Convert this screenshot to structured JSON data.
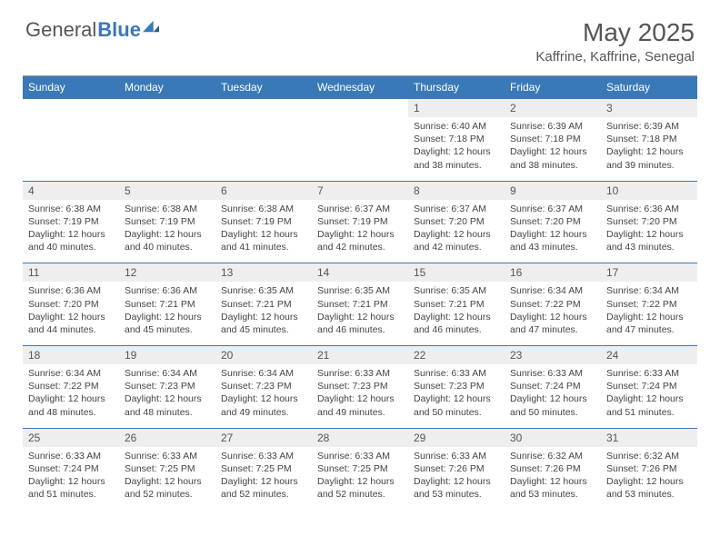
{
  "logo": {
    "part1": "General",
    "part2": "Blue"
  },
  "title": "May 2025",
  "subtitle": "Kaffrine, Kaffrine, Senegal",
  "colors": {
    "header_bg": "#3a79b7",
    "num_bg": "#eeeeee",
    "text": "#444444",
    "logo_gray": "#555555",
    "logo_blue": "#3a79b7"
  },
  "day_names": [
    "Sunday",
    "Monday",
    "Tuesday",
    "Wednesday",
    "Thursday",
    "Friday",
    "Saturday"
  ],
  "weeks": [
    [
      {
        "n": "",
        "t": ""
      },
      {
        "n": "",
        "t": ""
      },
      {
        "n": "",
        "t": ""
      },
      {
        "n": "",
        "t": ""
      },
      {
        "n": "1",
        "t": "Sunrise: 6:40 AM\nSunset: 7:18 PM\nDaylight: 12 hours and 38 minutes."
      },
      {
        "n": "2",
        "t": "Sunrise: 6:39 AM\nSunset: 7:18 PM\nDaylight: 12 hours and 38 minutes."
      },
      {
        "n": "3",
        "t": "Sunrise: 6:39 AM\nSunset: 7:18 PM\nDaylight: 12 hours and 39 minutes."
      }
    ],
    [
      {
        "n": "4",
        "t": "Sunrise: 6:38 AM\nSunset: 7:19 PM\nDaylight: 12 hours and 40 minutes."
      },
      {
        "n": "5",
        "t": "Sunrise: 6:38 AM\nSunset: 7:19 PM\nDaylight: 12 hours and 40 minutes."
      },
      {
        "n": "6",
        "t": "Sunrise: 6:38 AM\nSunset: 7:19 PM\nDaylight: 12 hours and 41 minutes."
      },
      {
        "n": "7",
        "t": "Sunrise: 6:37 AM\nSunset: 7:19 PM\nDaylight: 12 hours and 42 minutes."
      },
      {
        "n": "8",
        "t": "Sunrise: 6:37 AM\nSunset: 7:20 PM\nDaylight: 12 hours and 42 minutes."
      },
      {
        "n": "9",
        "t": "Sunrise: 6:37 AM\nSunset: 7:20 PM\nDaylight: 12 hours and 43 minutes."
      },
      {
        "n": "10",
        "t": "Sunrise: 6:36 AM\nSunset: 7:20 PM\nDaylight: 12 hours and 43 minutes."
      }
    ],
    [
      {
        "n": "11",
        "t": "Sunrise: 6:36 AM\nSunset: 7:20 PM\nDaylight: 12 hours and 44 minutes."
      },
      {
        "n": "12",
        "t": "Sunrise: 6:36 AM\nSunset: 7:21 PM\nDaylight: 12 hours and 45 minutes."
      },
      {
        "n": "13",
        "t": "Sunrise: 6:35 AM\nSunset: 7:21 PM\nDaylight: 12 hours and 45 minutes."
      },
      {
        "n": "14",
        "t": "Sunrise: 6:35 AM\nSunset: 7:21 PM\nDaylight: 12 hours and 46 minutes."
      },
      {
        "n": "15",
        "t": "Sunrise: 6:35 AM\nSunset: 7:21 PM\nDaylight: 12 hours and 46 minutes."
      },
      {
        "n": "16",
        "t": "Sunrise: 6:34 AM\nSunset: 7:22 PM\nDaylight: 12 hours and 47 minutes."
      },
      {
        "n": "17",
        "t": "Sunrise: 6:34 AM\nSunset: 7:22 PM\nDaylight: 12 hours and 47 minutes."
      }
    ],
    [
      {
        "n": "18",
        "t": "Sunrise: 6:34 AM\nSunset: 7:22 PM\nDaylight: 12 hours and 48 minutes."
      },
      {
        "n": "19",
        "t": "Sunrise: 6:34 AM\nSunset: 7:23 PM\nDaylight: 12 hours and 48 minutes."
      },
      {
        "n": "20",
        "t": "Sunrise: 6:34 AM\nSunset: 7:23 PM\nDaylight: 12 hours and 49 minutes."
      },
      {
        "n": "21",
        "t": "Sunrise: 6:33 AM\nSunset: 7:23 PM\nDaylight: 12 hours and 49 minutes."
      },
      {
        "n": "22",
        "t": "Sunrise: 6:33 AM\nSunset: 7:23 PM\nDaylight: 12 hours and 50 minutes."
      },
      {
        "n": "23",
        "t": "Sunrise: 6:33 AM\nSunset: 7:24 PM\nDaylight: 12 hours and 50 minutes."
      },
      {
        "n": "24",
        "t": "Sunrise: 6:33 AM\nSunset: 7:24 PM\nDaylight: 12 hours and 51 minutes."
      }
    ],
    [
      {
        "n": "25",
        "t": "Sunrise: 6:33 AM\nSunset: 7:24 PM\nDaylight: 12 hours and 51 minutes."
      },
      {
        "n": "26",
        "t": "Sunrise: 6:33 AM\nSunset: 7:25 PM\nDaylight: 12 hours and 52 minutes."
      },
      {
        "n": "27",
        "t": "Sunrise: 6:33 AM\nSunset: 7:25 PM\nDaylight: 12 hours and 52 minutes."
      },
      {
        "n": "28",
        "t": "Sunrise: 6:33 AM\nSunset: 7:25 PM\nDaylight: 12 hours and 52 minutes."
      },
      {
        "n": "29",
        "t": "Sunrise: 6:33 AM\nSunset: 7:26 PM\nDaylight: 12 hours and 53 minutes."
      },
      {
        "n": "30",
        "t": "Sunrise: 6:32 AM\nSunset: 7:26 PM\nDaylight: 12 hours and 53 minutes."
      },
      {
        "n": "31",
        "t": "Sunrise: 6:32 AM\nSunset: 7:26 PM\nDaylight: 12 hours and 53 minutes."
      }
    ]
  ]
}
